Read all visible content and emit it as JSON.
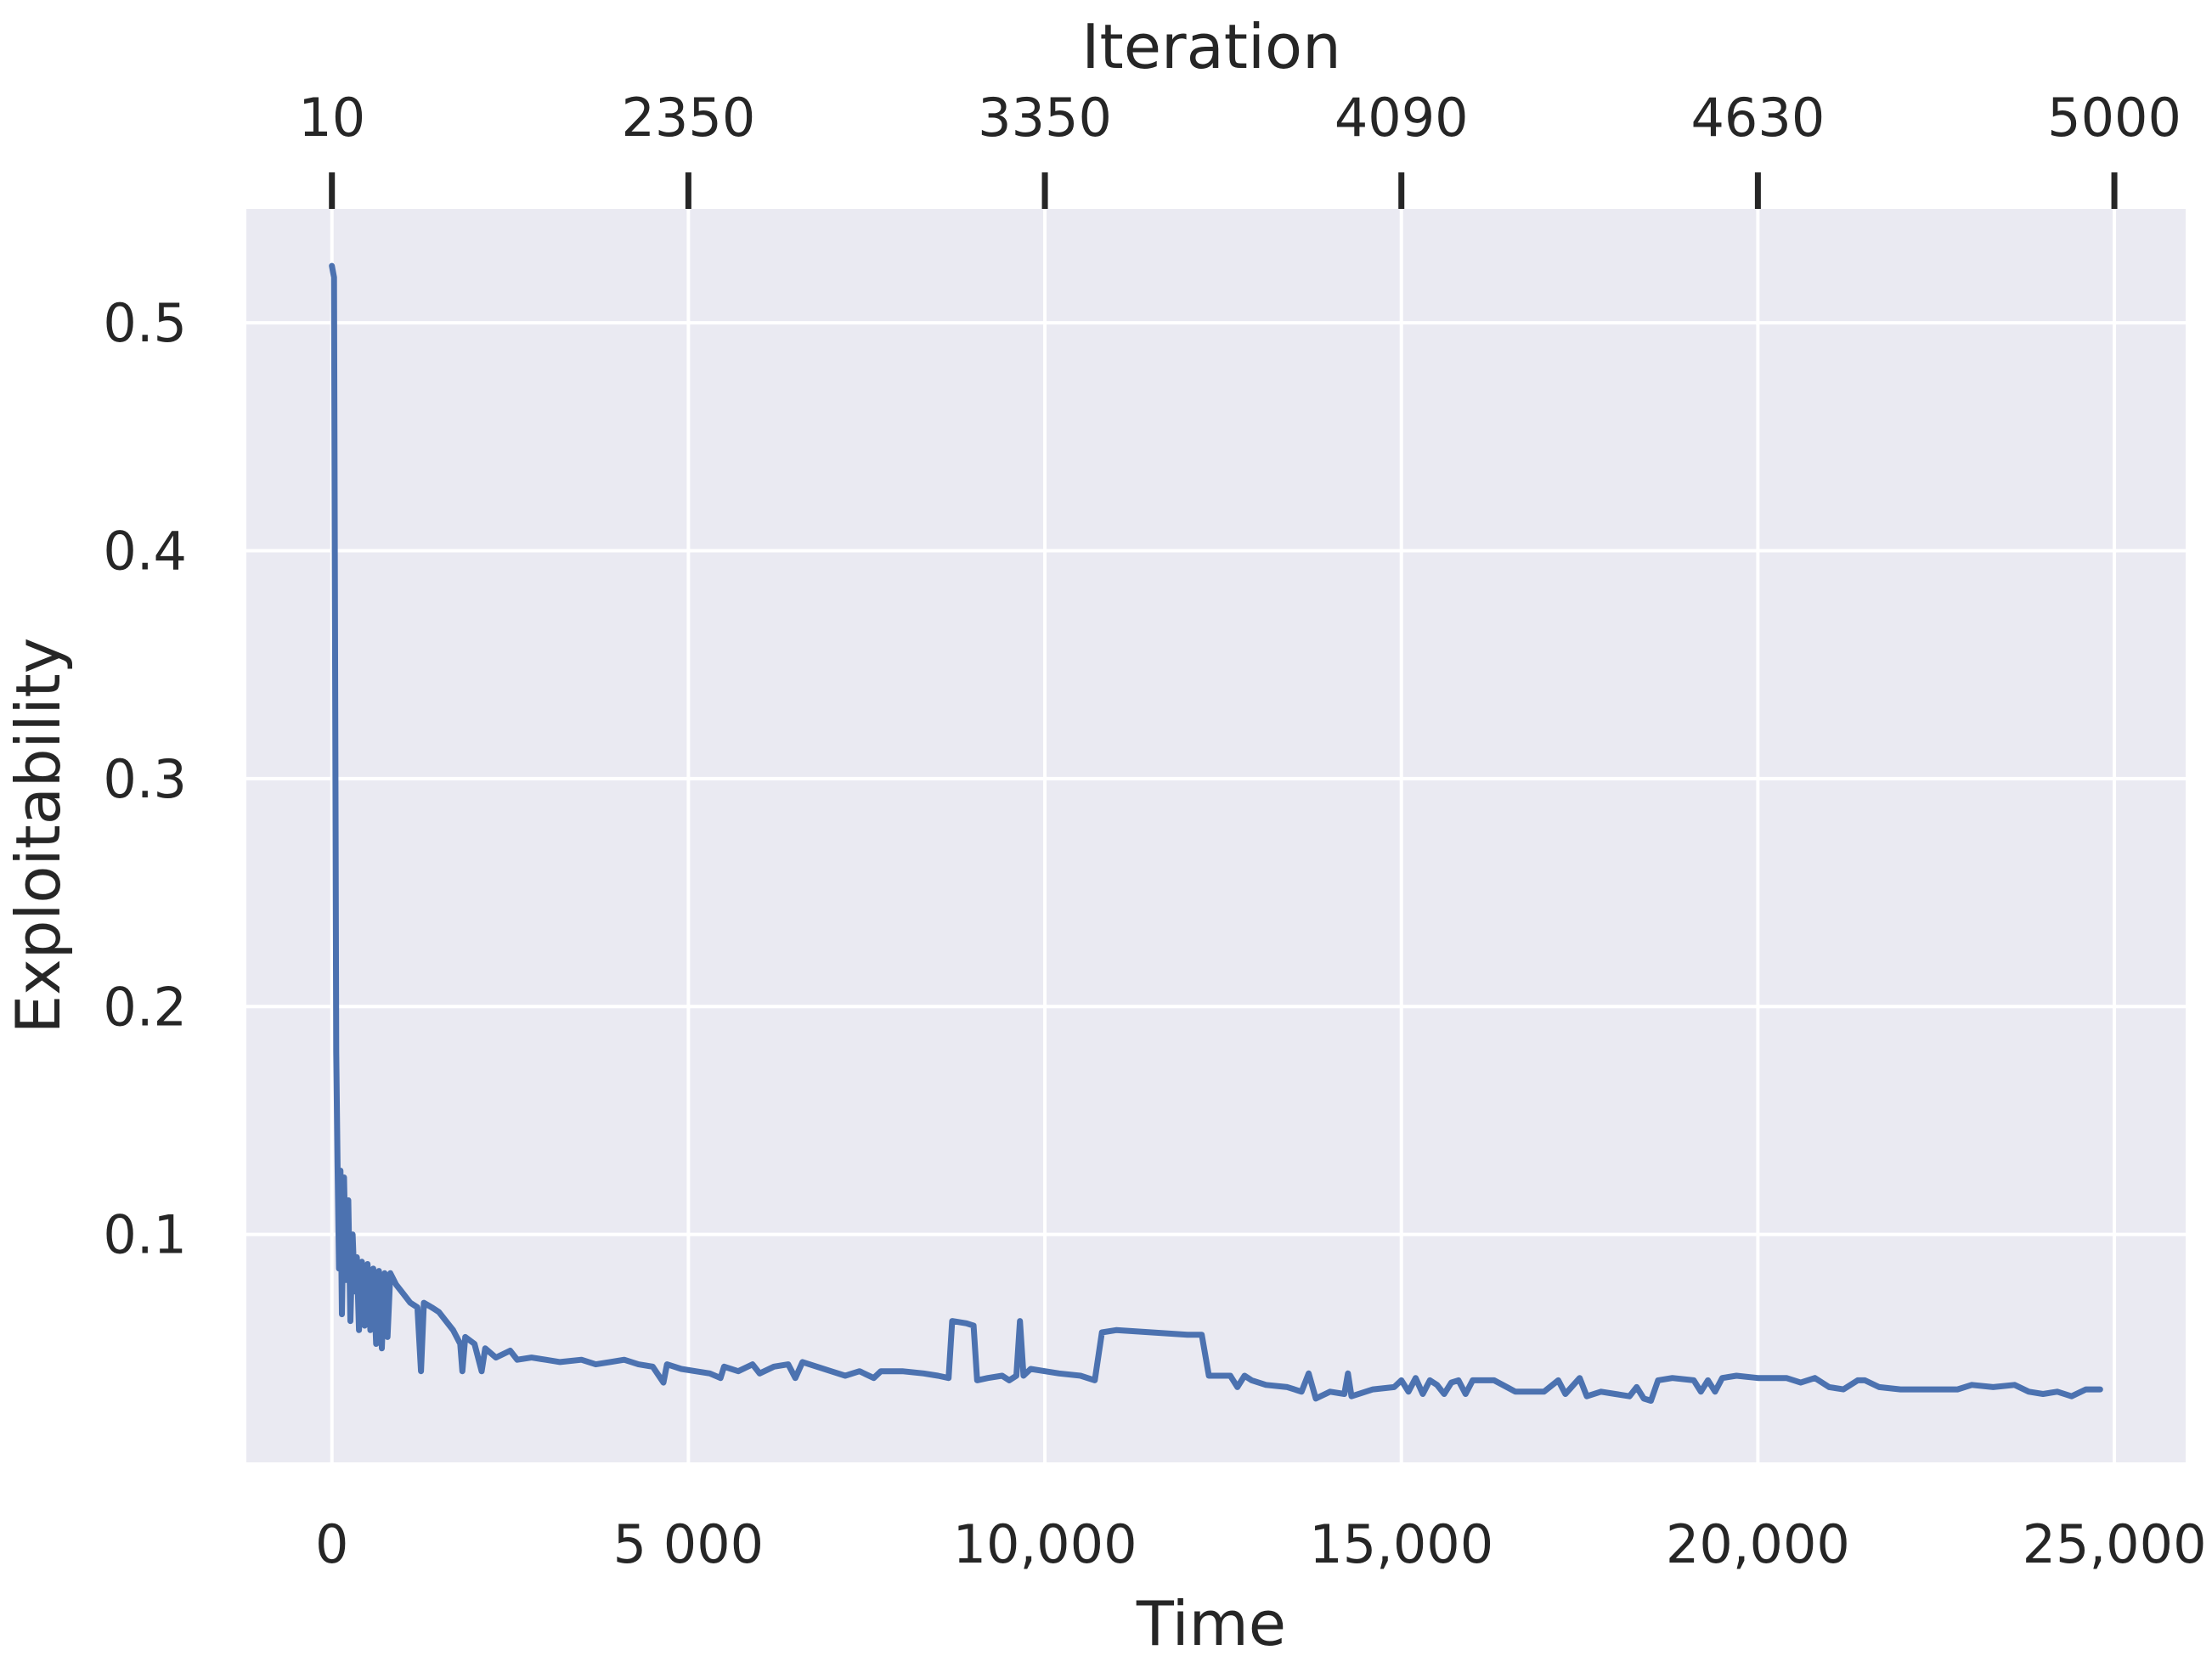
{
  "chart_data": {
    "type": "line",
    "xlabel": "Time",
    "ylabel": "Exploitability",
    "top_xlabel": "Iteration",
    "xlim": [
      -1200,
      26000
    ],
    "ylim": [
      0.0,
      0.55
    ],
    "grid": true,
    "x_ticks": [
      {
        "value": 0,
        "label": "0"
      },
      {
        "value": 5000,
        "label": "5 000"
      },
      {
        "value": 10000,
        "label": "10,000"
      },
      {
        "value": 15000,
        "label": "15,000"
      },
      {
        "value": 20000,
        "label": "20,000"
      },
      {
        "value": 25000,
        "label": "25,000"
      }
    ],
    "top_ticks": [
      {
        "value": 0,
        "label": "10"
      },
      {
        "value": 5000,
        "label": "2350"
      },
      {
        "value": 10000,
        "label": "3350"
      },
      {
        "value": 15000,
        "label": "4090"
      },
      {
        "value": 20000,
        "label": "4630"
      },
      {
        "value": 25000,
        "label": "5000"
      }
    ],
    "y_ticks": [
      {
        "value": 0.1,
        "label": "0.1"
      },
      {
        "value": 0.2,
        "label": "0.2"
      },
      {
        "value": 0.3,
        "label": "0.3"
      },
      {
        "value": 0.4,
        "label": "0.4"
      },
      {
        "value": 0.5,
        "label": "0.5"
      }
    ],
    "colors": {
      "background": "#eaeaf2",
      "grid": "#ffffff",
      "line": "#4c72b0",
      "text": "#262626"
    },
    "series": [
      {
        "values": [
          [
            0,
            0.525
          ],
          [
            30,
            0.52
          ],
          [
            50,
            0.3
          ],
          [
            60,
            0.18
          ],
          [
            80,
            0.13
          ],
          [
            100,
            0.085
          ],
          [
            120,
            0.128
          ],
          [
            140,
            0.065
          ],
          [
            170,
            0.125
          ],
          [
            200,
            0.08
          ],
          [
            230,
            0.115
          ],
          [
            260,
            0.062
          ],
          [
            290,
            0.1
          ],
          [
            320,
            0.075
          ],
          [
            350,
            0.09
          ],
          [
            380,
            0.058
          ],
          [
            420,
            0.088
          ],
          [
            460,
            0.06
          ],
          [
            500,
            0.087
          ],
          [
            540,
            0.058
          ],
          [
            580,
            0.085
          ],
          [
            620,
            0.052
          ],
          [
            660,
            0.084
          ],
          [
            700,
            0.05
          ],
          [
            740,
            0.083
          ],
          [
            780,
            0.055
          ],
          [
            820,
            0.083
          ],
          [
            900,
            0.078
          ],
          [
            1000,
            0.074
          ],
          [
            1100,
            0.07
          ],
          [
            1200,
            0.068
          ],
          [
            1250,
            0.04
          ],
          [
            1290,
            0.07
          ],
          [
            1400,
            0.068
          ],
          [
            1500,
            0.066
          ],
          [
            1600,
            0.062
          ],
          [
            1700,
            0.058
          ],
          [
            1800,
            0.052
          ],
          [
            1830,
            0.04
          ],
          [
            1870,
            0.055
          ],
          [
            2000,
            0.052
          ],
          [
            2100,
            0.04
          ],
          [
            2150,
            0.05
          ],
          [
            2300,
            0.046
          ],
          [
            2500,
            0.049
          ],
          [
            2600,
            0.045
          ],
          [
            2800,
            0.046
          ],
          [
            3000,
            0.045
          ],
          [
            3200,
            0.044
          ],
          [
            3500,
            0.045
          ],
          [
            3700,
            0.043
          ],
          [
            3900,
            0.044
          ],
          [
            4100,
            0.045
          ],
          [
            4300,
            0.043
          ],
          [
            4500,
            0.042
          ],
          [
            4650,
            0.035
          ],
          [
            4700,
            0.043
          ],
          [
            4900,
            0.041
          ],
          [
            5100,
            0.04
          ],
          [
            5300,
            0.039
          ],
          [
            5450,
            0.037
          ],
          [
            5500,
            0.042
          ],
          [
            5700,
            0.04
          ],
          [
            5900,
            0.043
          ],
          [
            6000,
            0.039
          ],
          [
            6200,
            0.042
          ],
          [
            6400,
            0.043
          ],
          [
            6500,
            0.037
          ],
          [
            6600,
            0.044
          ],
          [
            6800,
            0.042
          ],
          [
            7000,
            0.04
          ],
          [
            7200,
            0.038
          ],
          [
            7400,
            0.04
          ],
          [
            7600,
            0.037
          ],
          [
            7700,
            0.04
          ],
          [
            8000,
            0.04
          ],
          [
            8300,
            0.039
          ],
          [
            8500,
            0.038
          ],
          [
            8650,
            0.037
          ],
          [
            8700,
            0.062
          ],
          [
            8900,
            0.061
          ],
          [
            9000,
            0.06
          ],
          [
            9050,
            0.036
          ],
          [
            9200,
            0.037
          ],
          [
            9400,
            0.038
          ],
          [
            9500,
            0.036
          ],
          [
            9600,
            0.038
          ],
          [
            9650,
            0.062
          ],
          [
            9700,
            0.038
          ],
          [
            9800,
            0.041
          ],
          [
            10000,
            0.04
          ],
          [
            10200,
            0.039
          ],
          [
            10500,
            0.038
          ],
          [
            10700,
            0.036
          ],
          [
            10800,
            0.057
          ],
          [
            11000,
            0.058
          ],
          [
            11500,
            0.057
          ],
          [
            12000,
            0.056
          ],
          [
            12200,
            0.056
          ],
          [
            12300,
            0.038
          ],
          [
            12600,
            0.038
          ],
          [
            12700,
            0.033
          ],
          [
            12800,
            0.038
          ],
          [
            12900,
            0.036
          ],
          [
            13100,
            0.034
          ],
          [
            13400,
            0.033
          ],
          [
            13600,
            0.031
          ],
          [
            13700,
            0.039
          ],
          [
            13800,
            0.028
          ],
          [
            14000,
            0.031
          ],
          [
            14200,
            0.03
          ],
          [
            14250,
            0.039
          ],
          [
            14300,
            0.029
          ],
          [
            14600,
            0.032
          ],
          [
            14900,
            0.033
          ],
          [
            15000,
            0.036
          ],
          [
            15100,
            0.031
          ],
          [
            15200,
            0.037
          ],
          [
            15300,
            0.03
          ],
          [
            15400,
            0.036
          ],
          [
            15500,
            0.034
          ],
          [
            15600,
            0.03
          ],
          [
            15700,
            0.035
          ],
          [
            15800,
            0.036
          ],
          [
            15900,
            0.03
          ],
          [
            16000,
            0.036
          ],
          [
            16300,
            0.036
          ],
          [
            16600,
            0.031
          ],
          [
            17000,
            0.031
          ],
          [
            17200,
            0.036
          ],
          [
            17300,
            0.03
          ],
          [
            17500,
            0.037
          ],
          [
            17600,
            0.029
          ],
          [
            17800,
            0.031
          ],
          [
            18000,
            0.03
          ],
          [
            18200,
            0.029
          ],
          [
            18300,
            0.033
          ],
          [
            18400,
            0.028
          ],
          [
            18500,
            0.027
          ],
          [
            18600,
            0.036
          ],
          [
            18800,
            0.037
          ],
          [
            19100,
            0.036
          ],
          [
            19200,
            0.031
          ],
          [
            19300,
            0.036
          ],
          [
            19400,
            0.031
          ],
          [
            19500,
            0.037
          ],
          [
            19700,
            0.038
          ],
          [
            20000,
            0.037
          ],
          [
            20400,
            0.037
          ],
          [
            20600,
            0.035
          ],
          [
            20800,
            0.037
          ],
          [
            21000,
            0.033
          ],
          [
            21200,
            0.032
          ],
          [
            21400,
            0.036
          ],
          [
            21500,
            0.036
          ],
          [
            21700,
            0.033
          ],
          [
            22000,
            0.032
          ],
          [
            22500,
            0.032
          ],
          [
            22800,
            0.032
          ],
          [
            23000,
            0.034
          ],
          [
            23300,
            0.033
          ],
          [
            23600,
            0.034
          ],
          [
            23800,
            0.031
          ],
          [
            24000,
            0.03
          ],
          [
            24200,
            0.031
          ],
          [
            24400,
            0.029
          ],
          [
            24600,
            0.032
          ],
          [
            24800,
            0.032
          ]
        ]
      }
    ]
  }
}
